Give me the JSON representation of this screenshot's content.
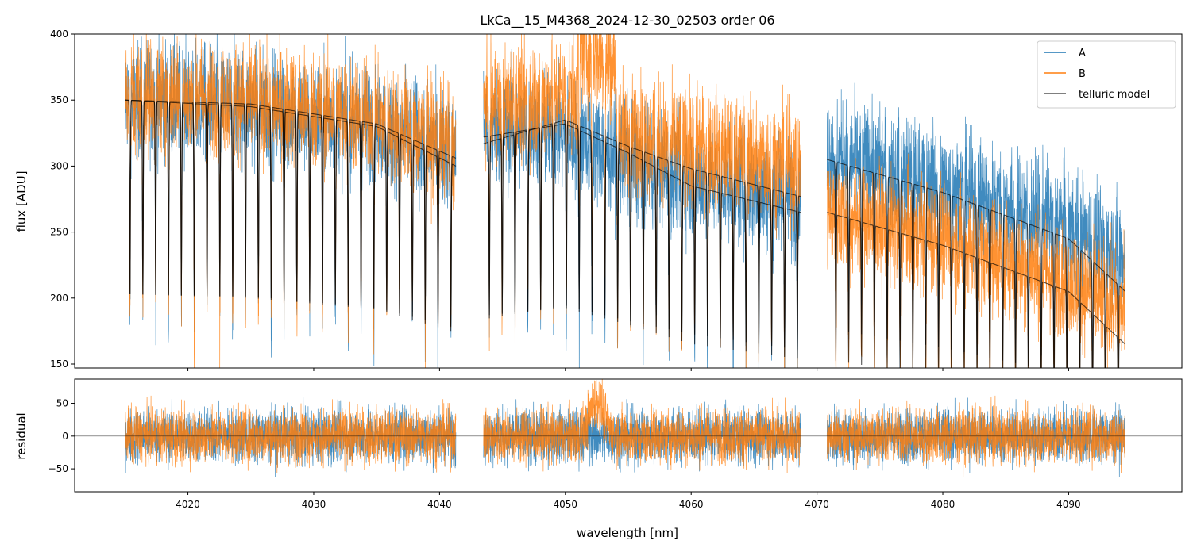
{
  "chart_data": [
    {
      "type": "line",
      "panel": "top",
      "title": "LkCa__15_M4368_2024-12-30_02503  order 06",
      "xlabel": "",
      "ylabel": "flux [ADU]",
      "xlim": [
        4011,
        4099
      ],
      "ylim": [
        147,
        400
      ],
      "yticks": [
        150,
        200,
        250,
        300,
        350,
        400
      ],
      "xticks": [
        4020,
        4030,
        4040,
        4050,
        4060,
        4070,
        4080,
        4090
      ],
      "segments": [
        [
          4015.0,
          4041.3
        ],
        [
          4043.5,
          4068.7
        ],
        [
          4070.8,
          4094.5
        ]
      ],
      "legend": {
        "position": "top-right",
        "entries": [
          "A",
          "B",
          "telluric model"
        ]
      },
      "series": [
        {
          "name": "A",
          "color": "#1f77b4",
          "x": [
            4015.0,
            4025.0,
            4035.0,
            4041.3,
            4043.5,
            4050.0,
            4055.0,
            4060.0,
            4068.7,
            4070.8,
            4080.0,
            4090.0,
            4094.5
          ],
          "y": [
            352,
            345,
            332,
            310,
            332,
            325,
            305,
            290,
            275,
            310,
            285,
            255,
            230
          ]
        },
        {
          "name": "B",
          "color": "#ff7f0e",
          "x": [
            4015.0,
            4025.0,
            4035.0,
            4041.3,
            4043.5,
            4050.0,
            4055.0,
            4060.0,
            4068.7,
            4070.8,
            4080.0,
            4090.0,
            4094.5
          ],
          "y": [
            355,
            350,
            336,
            315,
            345,
            355,
            325,
            315,
            300,
            265,
            245,
            215,
            190
          ]
        },
        {
          "name": "telluric model",
          "color": "#000000",
          "x": [
            4015.0,
            4025.0,
            4035.0,
            4041.3,
            4043.5,
            4050.0,
            4055.0,
            4060.0,
            4068.7,
            4070.8,
            4080.0,
            4090.0,
            4094.5
          ],
          "y_A": [
            350,
            345,
            330,
            300,
            317,
            335,
            315,
            298,
            277,
            305,
            280,
            245,
            205
          ],
          "y_B": [
            350,
            347,
            332,
            306,
            322,
            332,
            310,
            285,
            265,
            265,
            240,
            205,
            165
          ]
        }
      ]
    },
    {
      "type": "line",
      "panel": "bottom",
      "xlabel": "wavelength [nm]",
      "ylabel": "residual",
      "xlim": [
        4011,
        4099
      ],
      "ylim": [
        -85,
        87
      ],
      "yticks": [
        -50,
        0,
        50
      ],
      "xticks": [
        4020,
        4030,
        4040,
        4050,
        4060,
        4070,
        4080,
        4090
      ],
      "zero_line": true,
      "series": [
        {
          "name": "A",
          "color": "#1f77b4",
          "typical_amplitude": 35
        },
        {
          "name": "B",
          "color": "#ff7f0e",
          "typical_amplitude": 35,
          "feature": {
            "x": [
              4051.0,
              4054.0
            ],
            "offset": 55,
            "label": ""
          }
        }
      ]
    }
  ],
  "tick_labels": {
    "top_y": [
      "150",
      "200",
      "250",
      "300",
      "350",
      "400"
    ],
    "bottom_y": [
      "−50",
      "0",
      "50"
    ],
    "x": [
      "4020",
      "4030",
      "4040",
      "4050",
      "4060",
      "4070",
      "4080",
      "4090"
    ]
  }
}
